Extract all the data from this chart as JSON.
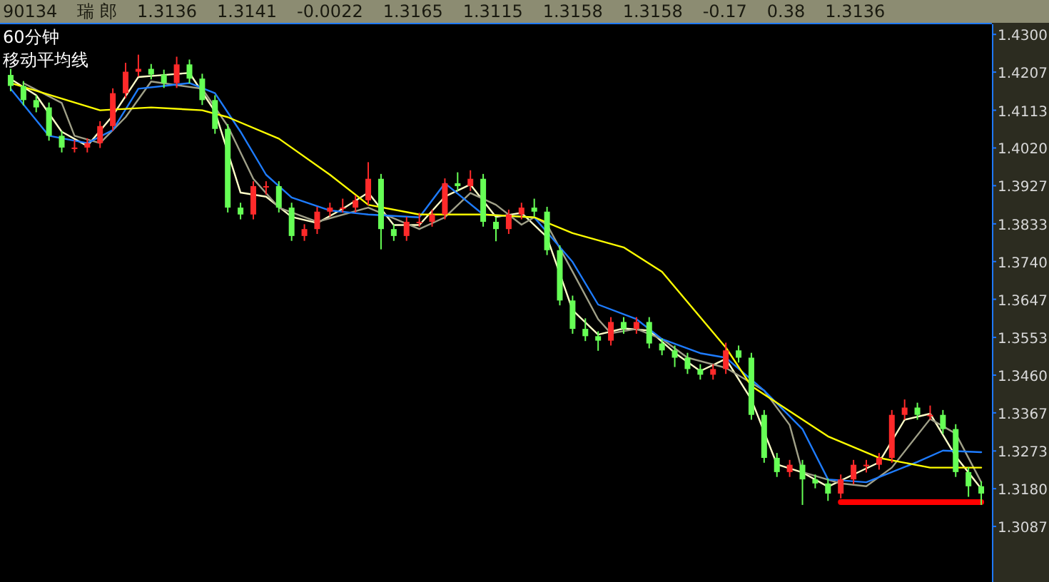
{
  "chart_data": {
    "type": "candlestick",
    "title": "60分钟",
    "subtitle": "移动平均线",
    "annotations": [
      "90134",
      "瑞 郎",
      "1.3136",
      "1.3141",
      "-0.0022",
      "1.3165",
      "1.3115",
      "1.3158",
      "1.3158",
      "-0.17",
      "0.38",
      "1.3136"
    ],
    "categories": [
      null,
      null,
      null,
      null,
      null,
      null,
      null,
      null,
      null,
      null,
      null,
      null,
      null,
      null,
      null,
      null,
      null,
      null,
      null,
      null,
      null,
      null,
      null,
      null,
      null,
      null,
      null,
      null,
      null,
      null,
      null,
      null,
      null,
      null,
      null,
      null,
      null,
      null,
      null,
      null,
      null,
      null,
      null,
      null,
      null,
      null,
      null,
      null,
      null,
      null,
      null,
      null,
      null,
      null,
      null,
      null,
      null,
      null,
      null,
      null,
      null,
      null,
      null,
      null,
      null,
      null,
      null,
      null,
      null,
      null,
      null,
      null,
      null,
      null,
      null,
      null,
      null
    ],
    "ohlc": [
      [
        1.42,
        1.4215,
        1.416,
        1.4173
      ],
      [
        1.4173,
        1.4185,
        1.4125,
        1.4138
      ],
      [
        1.4138,
        1.415,
        1.4108,
        1.412
      ],
      [
        1.412,
        1.4132,
        1.4038,
        1.405
      ],
      [
        1.405,
        1.4062,
        1.4009,
        1.4021
      ],
      [
        1.4021,
        1.404,
        1.4009,
        1.4021
      ],
      [
        1.4021,
        1.4044,
        1.4009,
        1.4032
      ],
      [
        1.4032,
        1.4086,
        1.402,
        1.4074
      ],
      [
        1.4074,
        1.4167,
        1.4062,
        1.4155
      ],
      [
        1.4155,
        1.423,
        1.4143,
        1.4208
      ],
      [
        1.4208,
        1.425,
        1.4196,
        1.4215
      ],
      [
        1.4215,
        1.4227,
        1.4189,
        1.4201
      ],
      [
        1.4201,
        1.4213,
        1.4168,
        1.418
      ],
      [
        1.418,
        1.4245,
        1.4168,
        1.4226
      ],
      [
        1.4226,
        1.4238,
        1.4179,
        1.4191
      ],
      [
        1.4191,
        1.4203,
        1.4126,
        1.4138
      ],
      [
        1.4138,
        1.415,
        1.4055,
        1.4067
      ],
      [
        1.4067,
        1.4079,
        1.3861,
        1.3873
      ],
      [
        1.3873,
        1.3885,
        1.3844,
        1.3856
      ],
      [
        1.3856,
        1.3938,
        1.3844,
        1.3926
      ],
      [
        1.3926,
        1.3938,
        1.3905,
        1.3926
      ],
      [
        1.3926,
        1.3938,
        1.3861,
        1.3873
      ],
      [
        1.3873,
        1.3885,
        1.3791,
        1.3803
      ],
      [
        1.3803,
        1.3832,
        1.3791,
        1.382
      ],
      [
        1.382,
        1.3875,
        1.3808,
        1.3863
      ],
      [
        1.3863,
        1.3885,
        1.3851,
        1.3873
      ],
      [
        1.3873,
        1.3895,
        1.3861,
        1.3873
      ],
      [
        1.3873,
        1.3903,
        1.3861,
        1.3891
      ],
      [
        1.3891,
        1.3985,
        1.3879,
        1.3944
      ],
      [
        1.3944,
        1.3956,
        1.377,
        1.382
      ],
      [
        1.382,
        1.3832,
        1.3791,
        1.3803
      ],
      [
        1.3803,
        1.385,
        1.3791,
        1.3838
      ],
      [
        1.3838,
        1.386,
        1.3826,
        1.3838
      ],
      [
        1.3838,
        1.3868,
        1.3826,
        1.3856
      ],
      [
        1.3856,
        1.3945,
        1.3844,
        1.3933
      ],
      [
        1.3933,
        1.396,
        1.3914,
        1.3926
      ],
      [
        1.3926,
        1.3965,
        1.3914,
        1.3944
      ],
      [
        1.3944,
        1.3956,
        1.3826,
        1.3838
      ],
      [
        1.3838,
        1.385,
        1.379,
        1.382
      ],
      [
        1.382,
        1.3868,
        1.3808,
        1.3856
      ],
      [
        1.3856,
        1.3885,
        1.3844,
        1.3873
      ],
      [
        1.3873,
        1.3895,
        1.3851,
        1.3863
      ],
      [
        1.3863,
        1.3875,
        1.3756,
        1.3768
      ],
      [
        1.3768,
        1.378,
        1.3632,
        1.3644
      ],
      [
        1.3644,
        1.3656,
        1.3562,
        1.3574
      ],
      [
        1.3574,
        1.36,
        1.3544,
        1.3556
      ],
      [
        1.3556,
        1.3568,
        1.352,
        1.3545
      ],
      [
        1.3545,
        1.3603,
        1.3533,
        1.3591
      ],
      [
        1.3591,
        1.3603,
        1.3562,
        1.3574
      ],
      [
        1.3574,
        1.3603,
        1.3562,
        1.3591
      ],
      [
        1.3591,
        1.3603,
        1.3526,
        1.3538
      ],
      [
        1.3538,
        1.355,
        1.3509,
        1.3521
      ],
      [
        1.3521,
        1.3533,
        1.348,
        1.3503
      ],
      [
        1.3503,
        1.3515,
        1.3463,
        1.3475
      ],
      [
        1.3475,
        1.3487,
        1.3449,
        1.3461
      ],
      [
        1.3461,
        1.3487,
        1.3449,
        1.3475
      ],
      [
        1.3475,
        1.354,
        1.3463,
        1.3521
      ],
      [
        1.3521,
        1.3533,
        1.3491,
        1.3503
      ],
      [
        1.3503,
        1.3515,
        1.335,
        1.3362
      ],
      [
        1.3362,
        1.3374,
        1.3244,
        1.3256
      ],
      [
        1.3256,
        1.3268,
        1.3209,
        1.3221
      ],
      [
        1.3221,
        1.3251,
        1.3209,
        1.3239
      ],
      [
        1.3239,
        1.3251,
        1.314,
        1.3203
      ],
      [
        1.3203,
        1.3215,
        1.3181,
        1.3193
      ],
      [
        1.3193,
        1.3205,
        1.315,
        1.3168
      ],
      [
        1.3168,
        1.3215,
        1.3156,
        1.3203
      ],
      [
        1.3203,
        1.3251,
        1.3191,
        1.3239
      ],
      [
        1.3239,
        1.3251,
        1.322,
        1.3239
      ],
      [
        1.3239,
        1.3268,
        1.3227,
        1.3256
      ],
      [
        1.3256,
        1.3374,
        1.3244,
        1.3362
      ],
      [
        1.3362,
        1.34,
        1.335,
        1.338
      ],
      [
        1.338,
        1.3392,
        1.335,
        1.3362
      ],
      [
        1.3362,
        1.3385,
        1.335,
        1.3362
      ],
      [
        1.3362,
        1.3374,
        1.3315,
        1.3327
      ],
      [
        1.3327,
        1.3339,
        1.3209,
        1.3221
      ],
      [
        1.3221,
        1.3233,
        1.316,
        1.3186
      ],
      [
        1.3186,
        1.3198,
        1.314,
        1.3168
      ]
    ],
    "series": [
      {
        "type": "line",
        "color": "#ffffc8",
        "values": [
          1.419,
          null,
          1.415,
          null,
          1.406,
          null,
          1.4025,
          null,
          1.41,
          null,
          1.4195,
          null,
          1.42,
          null,
          1.4205,
          null,
          1.411,
          null,
          1.391,
          null,
          1.39,
          null,
          1.385,
          null,
          1.3835,
          null,
          1.387,
          null,
          1.391,
          null,
          1.383,
          null,
          1.383,
          null,
          1.39,
          null,
          1.393,
          null,
          1.385,
          null,
          1.386,
          null,
          1.38,
          null,
          1.362,
          null,
          1.356,
          null,
          1.3575,
          null,
          1.357,
          null,
          1.3515,
          null,
          1.347,
          null,
          1.35,
          null,
          1.34,
          null,
          1.324,
          null,
          1.322,
          null,
          1.3185,
          null,
          1.3215,
          null,
          1.3245,
          null,
          1.335,
          null,
          1.3365,
          null,
          1.326,
          null,
          1.318
        ]
      },
      {
        "type": "line",
        "color": "#a0a088",
        "values": [
          null,
          1.418,
          null,
          null,
          1.4131,
          1.405,
          null,
          1.4032,
          null,
          1.4096,
          null,
          1.4184,
          null,
          null,
          null,
          1.4166,
          null,
          1.4074,
          null,
          1.3944,
          null,
          1.3873,
          null,
          null,
          1.3838,
          null,
          null,
          null,
          1.3873,
          null,
          null,
          null,
          1.382,
          null,
          1.3849,
          null,
          1.3909,
          null,
          1.388,
          null,
          1.3831,
          1.3849,
          1.3831,
          null,
          1.3715,
          null,
          1.3598,
          1.3563,
          null,
          1.3574,
          null,
          1.3549,
          null,
          1.3503,
          null,
          null,
          1.3478,
          null,
          null,
          1.3422,
          null,
          1.3337,
          1.3221,
          null,
          null,
          1.3193,
          null,
          1.3186,
          null,
          1.3232,
          null,
          null,
          1.3352,
          null,
          1.3316,
          null,
          1.3196
        ]
      },
      {
        "type": "line",
        "color": "#1e7cff",
        "values": [
          1.4166,
          null,
          null,
          1.405,
          null,
          null,
          1.4032,
          null,
          1.4064,
          null,
          1.4166,
          null,
          1.4173,
          null,
          1.418,
          null,
          1.4155,
          null,
          1.406,
          null,
          1.3954,
          null,
          1.3898,
          null,
          null,
          1.3866,
          null,
          null,
          1.3856,
          null,
          null,
          null,
          1.3849,
          null,
          1.3933,
          null,
          null,
          1.3856,
          null,
          null,
          null,
          1.3849,
          null,
          null,
          1.3739,
          null,
          1.3634,
          null,
          null,
          1.3598,
          null,
          1.3549,
          null,
          null,
          1.3514,
          null,
          1.3503,
          null,
          null,
          1.3422,
          null,
          null,
          1.3327,
          null,
          1.3203,
          null,
          null,
          1.3196,
          null,
          null,
          null,
          1.3246,
          null,
          1.3274,
          null,
          null,
          1.327
        ]
      },
      {
        "type": "line",
        "color": "#ffff00",
        "values": [
          1.418,
          null,
          null,
          null,
          null,
          null,
          null,
          1.4113,
          null,
          null,
          null,
          1.412,
          null,
          null,
          null,
          1.4113,
          null,
          1.4096,
          null,
          null,
          null,
          1.4043,
          null,
          null,
          null,
          1.3954,
          null,
          null,
          1.388,
          null,
          null,
          null,
          1.3856,
          null,
          null,
          null,
          null,
          1.3856,
          null,
          null,
          null,
          1.3849,
          null,
          null,
          1.381,
          null,
          null,
          null,
          1.3775,
          null,
          null,
          1.3715,
          null,
          null,
          null,
          null,
          1.3528,
          null,
          1.3433,
          null,
          null,
          null,
          null,
          null,
          1.3309,
          null,
          null,
          null,
          1.3256,
          null,
          null,
          null,
          1.3232,
          null,
          null,
          null,
          1.3232
        ]
      },
      {
        "type": "line",
        "color": "#ff0000",
        "values": [
          null,
          null,
          null,
          null,
          null,
          null,
          null,
          null,
          null,
          null,
          null,
          null,
          null,
          null,
          null,
          null,
          null,
          null,
          null,
          null,
          null,
          null,
          null,
          null,
          null,
          null,
          null,
          null,
          null,
          null,
          null,
          null,
          null,
          null,
          null,
          null,
          null,
          null,
          null,
          null,
          null,
          null,
          null,
          null,
          null,
          null,
          null,
          null,
          null,
          null,
          null,
          null,
          null,
          null,
          null,
          null,
          null,
          null,
          null,
          null,
          null,
          null,
          null,
          null,
          null,
          1.3147,
          null,
          null,
          null,
          null,
          null,
          null,
          null,
          null,
          null,
          null,
          1.3147
        ]
      }
    ],
    "ylim": [
      1.295,
      1.4325
    ],
    "yticks": [
      {
        "value": 1.43,
        "label": "1.4300"
      },
      {
        "value": 1.4207,
        "label": "1.4207"
      },
      {
        "value": 1.4113,
        "label": "1.4113"
      },
      {
        "value": 1.402,
        "label": "1.4020"
      },
      {
        "value": 1.3927,
        "label": "1.3927"
      },
      {
        "value": 1.3833,
        "label": "1.3833"
      },
      {
        "value": 1.374,
        "label": "1.3740"
      },
      {
        "value": 1.3647,
        "label": "1.3647"
      },
      {
        "value": 1.3553,
        "label": "1.3553"
      },
      {
        "value": 1.346,
        "label": "1.3460"
      },
      {
        "value": 1.3367,
        "label": "1.3367"
      },
      {
        "value": 1.3273,
        "label": "1.3273"
      },
      {
        "value": 1.318,
        "label": "1.3180"
      },
      {
        "value": 1.3087,
        "label": "1.3087"
      }
    ],
    "tick_labels": "y"
  }
}
